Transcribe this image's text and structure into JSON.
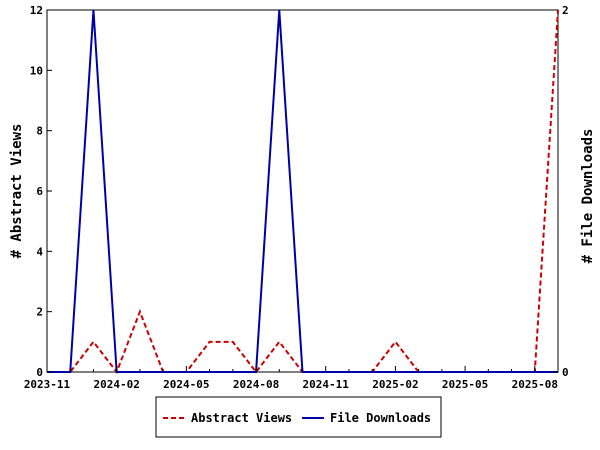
{
  "chart_data": {
    "type": "line",
    "x": [
      "2023-11",
      "2023-12",
      "2024-01",
      "2024-02",
      "2024-03",
      "2024-04",
      "2024-05",
      "2024-06",
      "2024-07",
      "2024-08",
      "2024-09",
      "2024-10",
      "2024-11",
      "2024-12",
      "2025-01",
      "2025-02",
      "2025-03",
      "2025-04",
      "2025-05",
      "2025-06",
      "2025-07",
      "2025-08",
      "2025-09"
    ],
    "series": [
      {
        "name": "Abstract Views",
        "axis": "left",
        "color": "#cc0000",
        "style": "dashed",
        "values": [
          0,
          0,
          1,
          0,
          2,
          0,
          0,
          1,
          1,
          0,
          1,
          0,
          0,
          0,
          0,
          1,
          0,
          0,
          0,
          0,
          0,
          0,
          12
        ]
      },
      {
        "name": "File Downloads",
        "axis": "right",
        "color": "#0000aa",
        "style": "solid",
        "values": [
          0,
          0,
          2,
          0,
          0,
          0,
          0,
          0,
          0,
          0,
          2,
          0,
          0,
          0,
          0,
          0,
          0,
          0,
          0,
          0,
          0,
          0,
          0
        ]
      }
    ],
    "xticks": [
      "2023-11",
      "2024-02",
      "2024-05",
      "2024-08",
      "2024-11",
      "2025-02",
      "2025-05",
      "2025-08"
    ],
    "ylabel": "# Abstract Views",
    "ylim": [
      0,
      12
    ],
    "yticks": [
      0,
      2,
      4,
      6,
      8,
      10,
      12
    ],
    "y2label": "# File Downloads",
    "y2lim": [
      0,
      2
    ],
    "y2ticks": [
      0,
      2
    ],
    "grid": false,
    "legend_position": "bottom"
  }
}
